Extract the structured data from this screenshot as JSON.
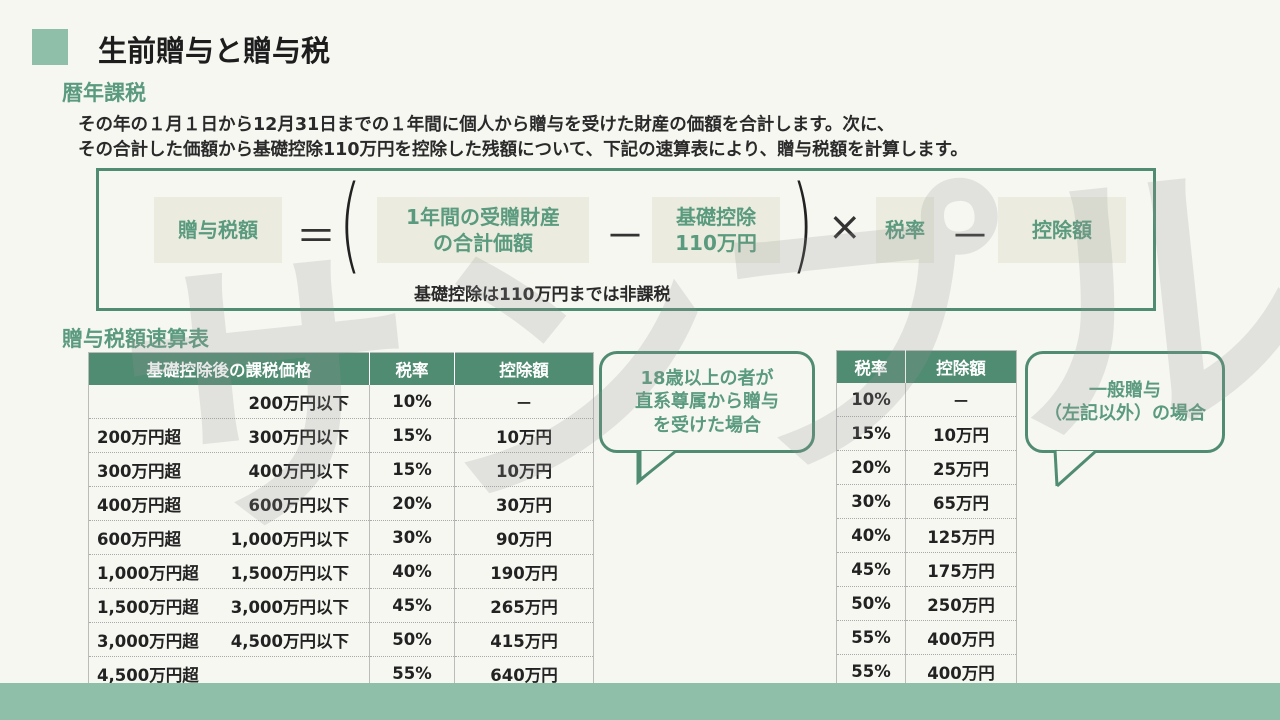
{
  "title": "生前贈与と贈与税",
  "section1_heading": "暦年課税",
  "description": [
    "その年の１月１日から12月31日までの１年間に個人から贈与を受けた財産の価額を合計します。次に、",
    "その合計した価額から基礎控除110万円を控除した残額について、下記の速算表により、贈与税額を計算します。"
  ],
  "formula": {
    "result": "贈与税額",
    "equals": "＝",
    "term1_line1": "1年間の受贈財産",
    "term1_line2": "の合計価額",
    "minus1": "－",
    "term2_line1": "基礎控除",
    "term2_line2": "110万円",
    "times": "×",
    "rate": "税率",
    "minus2": "－",
    "deduction": "控除額",
    "footnote": "基礎控除は110万円までは非課税"
  },
  "section2_heading": "贈与税額速算表",
  "table1": {
    "headers": [
      "基礎控除後の課税価格",
      "税率",
      "控除額"
    ],
    "rows": [
      {
        "from": "",
        "to": "200万円以下",
        "rate": "10%",
        "deduction": "－"
      },
      {
        "from": "200万円超",
        "to": "300万円以下",
        "rate": "15%",
        "deduction": "10万円"
      },
      {
        "from": "300万円超",
        "to": "400万円以下",
        "rate": "15%",
        "deduction": "10万円"
      },
      {
        "from": "400万円超",
        "to": "600万円以下",
        "rate": "20%",
        "deduction": "30万円"
      },
      {
        "from": "600万円超",
        "to": "1,000万円以下",
        "rate": "30%",
        "deduction": "90万円"
      },
      {
        "from": "1,000万円超",
        "to": "1,500万円以下",
        "rate": "40%",
        "deduction": "190万円"
      },
      {
        "from": "1,500万円超",
        "to": "3,000万円以下",
        "rate": "45%",
        "deduction": "265万円"
      },
      {
        "from": "3,000万円超",
        "to": "4,500万円以下",
        "rate": "50%",
        "deduction": "415万円"
      },
      {
        "from": "4,500万円超",
        "to": "",
        "rate": "55%",
        "deduction": "640万円"
      }
    ]
  },
  "bubble1": {
    "line1": "18歳以上の者が",
    "line2": "直系尊属から贈与",
    "line3": "を受けた場合"
  },
  "table2": {
    "headers": [
      "税率",
      "控除額"
    ],
    "rows": [
      {
        "rate": "10%",
        "deduction": "－"
      },
      {
        "rate": "15%",
        "deduction": "10万円"
      },
      {
        "rate": "20%",
        "deduction": "25万円"
      },
      {
        "rate": "30%",
        "deduction": "65万円"
      },
      {
        "rate": "40%",
        "deduction": "125万円"
      },
      {
        "rate": "45%",
        "deduction": "175万円"
      },
      {
        "rate": "50%",
        "deduction": "250万円"
      },
      {
        "rate": "55%",
        "deduction": "400万円"
      },
      {
        "rate": "55%",
        "deduction": "400万円"
      }
    ]
  },
  "bubble2": {
    "line1": "一般贈与",
    "line2": "（左記以外）の場合"
  },
  "watermark": "サンプル",
  "colors": {
    "accent": "#4f8c72",
    "accent_light": "#8fbfa9",
    "term_bg": "#ebecdf",
    "text_green": "#5a9a7e"
  }
}
